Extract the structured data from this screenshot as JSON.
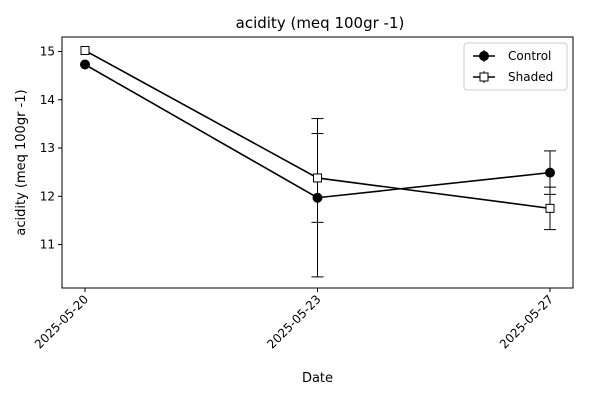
{
  "chart_data": {
    "type": "line",
    "title": "acidity (meq 100gr -1)",
    "xlabel": "Date",
    "ylabel": "acidity (meq 100gr -1)",
    "x": [
      "2025-05-20",
      "2025-05-23",
      "2025-05-27"
    ],
    "ylim": [
      10.1,
      15.3
    ],
    "yticks": [
      11,
      12,
      13,
      14,
      15
    ],
    "grid": false,
    "legend_position": "top-right",
    "series": [
      {
        "name": "Control",
        "marker": "filled-circle",
        "color": "#000000",
        "values": [
          14.73,
          11.97,
          12.49
        ],
        "error": [
          null,
          1.64,
          0.45
        ]
      },
      {
        "name": "Shaded",
        "marker": "open-square",
        "color": "#000000",
        "values": [
          15.02,
          12.38,
          11.75
        ],
        "error": [
          null,
          0.92,
          0.44
        ]
      }
    ]
  }
}
